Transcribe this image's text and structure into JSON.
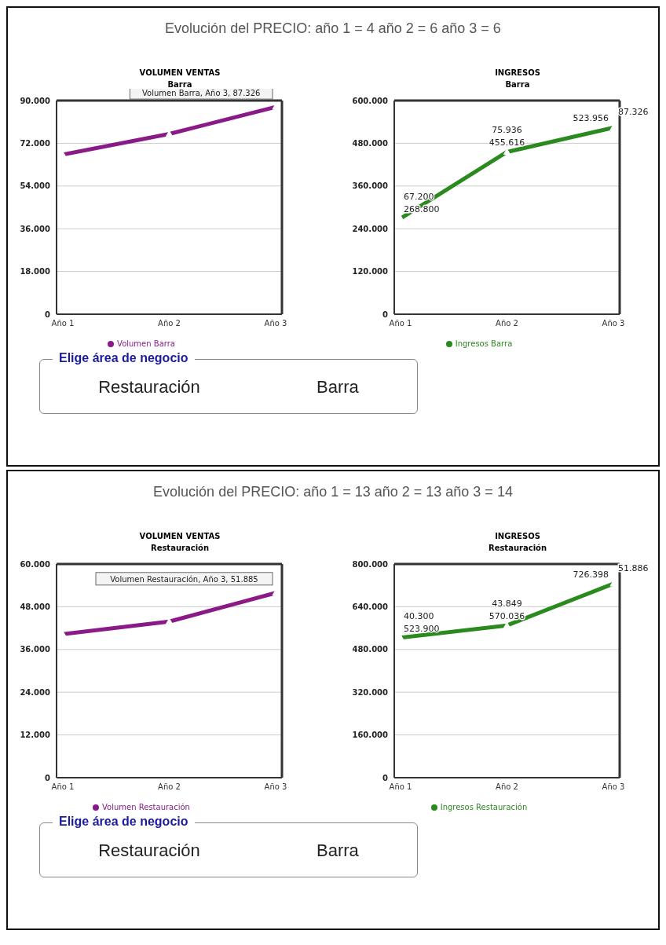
{
  "chart_data": [
    {
      "type": "other",
      "title": "Evolución del PRECIO:  año 1 = 4   año 2 = 6   año 3 = 6"
    },
    {
      "type": "line",
      "title": "VOLUMEN VENTAS",
      "subtitle": "Barra",
      "categories": [
        "Año 1",
        "Año 2",
        "Año 3"
      ],
      "series": [
        {
          "name": "Volumen Barra",
          "color": "#8b1a89",
          "values": [
            67200,
            75936,
            87326
          ]
        }
      ],
      "ylim": [
        0,
        90000
      ],
      "yticks": [
        {
          "value": 0,
          "label": "0"
        },
        {
          "value": 18000,
          "label": "18.000"
        },
        {
          "value": 36000,
          "label": "36.000"
        },
        {
          "value": 54000,
          "label": "54.000"
        },
        {
          "value": 72000,
          "label": "72.000"
        },
        {
          "value": 90000,
          "label": "90.000"
        }
      ],
      "grid": "y",
      "legend": "bottom",
      "marker": "triangle",
      "line_style": "solid",
      "annotations": [
        {
          "text": "Volumen Barra, Año 3, 87.326",
          "x": "Año 3",
          "y": 87326
        }
      ]
    },
    {
      "type": "line",
      "title": "INGRESOS",
      "subtitle": "Barra",
      "categories": [
        "Año 1",
        "Año 2",
        "Año 3"
      ],
      "series": [
        {
          "name": "Ingresos Barra",
          "color": "#2a8a1e",
          "values": [
            268800,
            455616,
            523956
          ],
          "value_labels": [
            "268.800",
            "455.616",
            "523.956"
          ]
        }
      ],
      "ylim": [
        0,
        600000
      ],
      "yticks": [
        {
          "value": 0,
          "label": "0"
        },
        {
          "value": 120000,
          "label": "120.000"
        },
        {
          "value": 240000,
          "label": "240.000"
        },
        {
          "value": 360000,
          "label": "360.000"
        },
        {
          "value": 480000,
          "label": "480.000"
        },
        {
          "value": 600000,
          "label": "600.000"
        }
      ],
      "grid": "y",
      "legend": "bottom",
      "marker": "triangle",
      "line_style": "solid",
      "annotations": [
        {
          "text": "67.200",
          "x": "Año 1",
          "y": 268800
        },
        {
          "text": "75.936",
          "x": "Año 2",
          "y": 455616
        },
        {
          "text": "87.326",
          "x": "Año 3",
          "y": 523956
        }
      ]
    },
    {
      "type": "other",
      "title": "Elige área de negocio",
      "annotations": [
        "Restauración",
        "Barra"
      ]
    },
    {
      "type": "other",
      "title": "Evolución del PRECIO:  año 1 = 13   año 2 = 13   año 3 = 14"
    },
    {
      "type": "line",
      "title": "VOLUMEN VENTAS",
      "subtitle": "Restauración",
      "categories": [
        "Año 1",
        "Año 2",
        "Año 3"
      ],
      "series": [
        {
          "name": "Volumen Restauración",
          "color": "#8b1a89",
          "values": [
            40300,
            43849,
            51885
          ]
        }
      ],
      "ylim": [
        0,
        60000
      ],
      "yticks": [
        {
          "value": 0,
          "label": "0"
        },
        {
          "value": 12000,
          "label": "12.000"
        },
        {
          "value": 24000,
          "label": "24.000"
        },
        {
          "value": 36000,
          "label": "36.000"
        },
        {
          "value": 48000,
          "label": "48.000"
        },
        {
          "value": 60000,
          "label": "60.000"
        }
      ],
      "grid": "y",
      "legend": "bottom",
      "marker": "triangle",
      "line_style": "solid",
      "annotations": [
        {
          "text": "Volumen Restauración, Año 3, 51.885",
          "x": "Año 3",
          "y": 51885
        }
      ]
    },
    {
      "type": "line",
      "title": "INGRESOS",
      "subtitle": "Restauración",
      "categories": [
        "Año 1",
        "Año 2",
        "Año 3"
      ],
      "series": [
        {
          "name": "Ingresos Restauración",
          "color": "#2a8a1e",
          "values": [
            523900,
            570036,
            726398
          ],
          "value_labels": [
            "523.900",
            "570.036",
            "726.398"
          ]
        }
      ],
      "ylim": [
        0,
        800000
      ],
      "yticks": [
        {
          "value": 0,
          "label": "0"
        },
        {
          "value": 160000,
          "label": "160.000"
        },
        {
          "value": 320000,
          "label": "320.000"
        },
        {
          "value": 480000,
          "label": "480.000"
        },
        {
          "value": 640000,
          "label": "640.000"
        },
        {
          "value": 800000,
          "label": "800.000"
        }
      ],
      "grid": "y",
      "legend": "bottom",
      "marker": "triangle",
      "line_style": "solid",
      "annotations": [
        {
          "text": "40.300",
          "x": "Año 1",
          "y": 523900
        },
        {
          "text": "43.849",
          "x": "Año 2",
          "y": 570036
        },
        {
          "text": "51.886",
          "x": "Año 3",
          "y": 726398
        }
      ]
    },
    {
      "type": "other",
      "title": "Elige área de negocio",
      "annotations": [
        "Restauración",
        "Barra"
      ]
    }
  ]
}
